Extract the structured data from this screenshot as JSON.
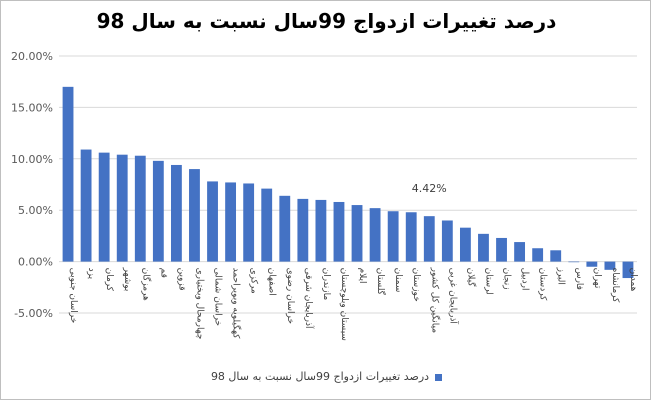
{
  "chart_data": {
    "type": "bar",
    "title": "درصد تغییرات ازدواج 99سال نسبت به  سال 98",
    "series": [
      {
        "name": "درصد تغییرات ازدواج 99سال نسبت به  سال 98",
        "color": "#4472C4",
        "values": [
          17.0,
          10.9,
          10.6,
          10.4,
          10.3,
          9.8,
          9.4,
          9.0,
          7.8,
          7.7,
          7.6,
          7.1,
          6.4,
          6.1,
          6.0,
          5.8,
          5.5,
          5.2,
          4.9,
          4.8,
          4.42,
          4.0,
          3.3,
          2.7,
          2.3,
          1.9,
          1.3,
          1.1,
          0.0,
          -0.5,
          -0.8,
          -1.6
        ]
      }
    ],
    "categories": [
      "خراسان جنوبی",
      "یزد",
      "کرمان",
      "بوشهر",
      "هرمزگان",
      "قم",
      "قزوین",
      "چهارمحال وبختیاری",
      "خراسان شمالی",
      "کهگیلویه وبویراحمد",
      "مرکزی",
      "اصفهان",
      "خراسان رضوی",
      "آذربایجان شرقی",
      "مازندران",
      "سیستان وبلوچستان",
      "ایلام",
      "گلستان",
      "سمنان",
      "خوزستان",
      "میانگین کل کشور",
      "آذربایجان غربی",
      "گیلان",
      "لرستان",
      "زنجان",
      "اردبیل",
      "کردستان",
      "البرز",
      "فارس",
      "تهران",
      "کرمانشاه",
      "همدان"
    ],
    "ylim": [
      -5,
      20
    ],
    "yticks": [
      -5,
      0,
      5,
      10,
      15,
      20
    ],
    "ytick_labels": [
      "-5.00%",
      "0.00%",
      "5.00%",
      "10.00%",
      "15.00%",
      "20.00%"
    ],
    "gridlines": true,
    "legend_position": "bottom",
    "annotations": [
      {
        "category_index": 20,
        "text": "4.42%"
      }
    ]
  }
}
